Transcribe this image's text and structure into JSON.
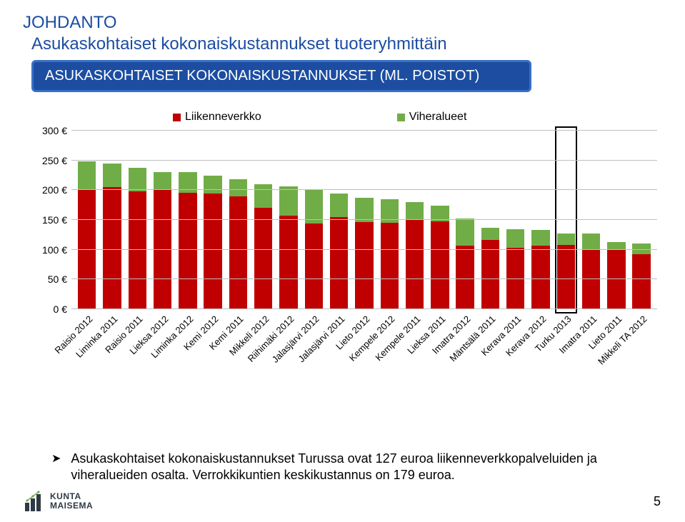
{
  "colors": {
    "heading": "#1c4da1",
    "title_bar_bg": "#1c4da1",
    "title_bar_border": "#3970c5",
    "grid": "#bfbfbf",
    "series_a": "#c00000",
    "series_b": "#71ad47",
    "text": "#000000",
    "logo_text": "#2f3a45"
  },
  "heading1": "JOHDANTO",
  "heading2": "Asukaskohtaiset kokonaiskustannukset tuoteryhmittäin",
  "title_bar": "ASUKASKOHTAISET KOKONAISKUSTANNUKSET (ML. POISTOT)",
  "legend": {
    "a": "Liikenneverkko",
    "b": "Viheralueet"
  },
  "chart": {
    "ymax": 300,
    "ystep": 50,
    "ysuffix": " €",
    "categories": [
      "Raisio 2012",
      "Liminka 2011",
      "Raisio 2011",
      "Lieksa 2012",
      "Liminka 2012",
      "Kemi 2012",
      "Kemi 2011",
      "Mikkeli 2012",
      "Riihimäki 2012",
      "Jalasjärvi 2012",
      "Jalasjärvi 2011",
      "Lieto 2012",
      "Kempele 2012",
      "Kempele 2011",
      "Lieksa 2011",
      "Imatra 2012",
      "Mäntsälä 2011",
      "Kerava 2011",
      "Kerava 2012",
      "Turku 2013",
      "Imatra 2011",
      "Lieto 2011",
      "Mikkeli TA 2012"
    ],
    "series_a": [
      200,
      205,
      198,
      200,
      196,
      195,
      190,
      170,
      157,
      144,
      155,
      147,
      145,
      150,
      148,
      107,
      117,
      103,
      107,
      108,
      100,
      100,
      93
    ],
    "series_b": [
      48,
      40,
      40,
      30,
      34,
      30,
      29,
      40,
      50,
      58,
      40,
      40,
      40,
      30,
      26,
      45,
      20,
      32,
      26,
      19,
      27,
      13,
      17
    ],
    "highlight_index": 19
  },
  "bullet": "Asukaskohtaiset kokonaiskustannukset Turussa ovat 127 euroa liikenneverkkopalveluiden ja viheralueiden osalta. Verrokkikuntien keskikustannus on 179 euroa.",
  "page_number": "5",
  "logo": {
    "line1": "KUNTA",
    "line2": "MAISEMA"
  }
}
